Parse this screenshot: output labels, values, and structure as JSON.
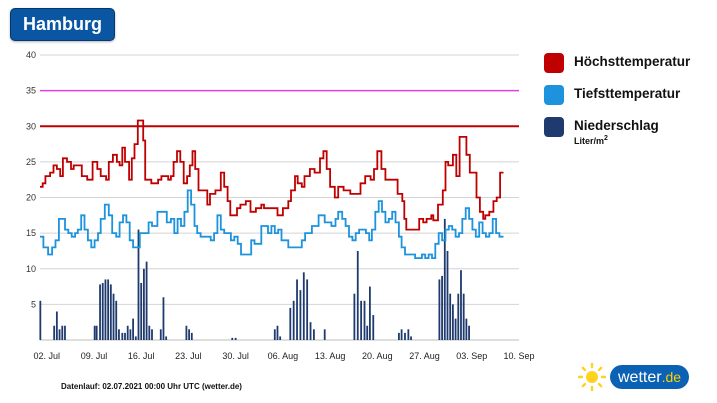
{
  "header": {
    "city": "Hamburg"
  },
  "legend": {
    "max_label": "Höchsttemperatur",
    "min_label": "Tiefsttemperatur",
    "precip_label": "Niederschlag",
    "precip_unit": "Liter/m",
    "precip_unit_exp": "2"
  },
  "footer": {
    "text": "Datenlauf: 02.07.2021 00:00 Uhr UTC (wetter.de)"
  },
  "brand": {
    "name": "wetter",
    "tld": ".de"
  },
  "colors": {
    "max": "#c00000",
    "min": "#1c93dc",
    "precip": "#1e3a6e",
    "ref_line": "#e040e0",
    "brand": "#0b61b4"
  },
  "chart_data": {
    "type": "line",
    "title": "Hamburg",
    "xlabel": "",
    "ylabel": "",
    "ylim": [
      0,
      40
    ],
    "yticks": [
      5,
      10,
      15,
      20,
      25,
      30,
      35,
      40
    ],
    "x_range_days": [
      -1,
      70
    ],
    "x_ticks": [
      {
        "day": 0,
        "label": "02. Jul"
      },
      {
        "day": 7,
        "label": "09. Jul"
      },
      {
        "day": 14,
        "label": "16. Jul"
      },
      {
        "day": 21,
        "label": "23. Jul"
      },
      {
        "day": 28,
        "label": "30. Jul"
      },
      {
        "day": 35,
        "label": "06. Aug"
      },
      {
        "day": 42,
        "label": "13. Aug"
      },
      {
        "day": 49,
        "label": "20. Aug"
      },
      {
        "day": 56,
        "label": "27. Aug"
      },
      {
        "day": 63,
        "label": "03. Sep"
      },
      {
        "day": 70,
        "label": "10. Sep"
      }
    ],
    "reference_lines": [
      {
        "value": 30,
        "color": "#c00000"
      },
      {
        "value": 35,
        "color": "#e040e0"
      }
    ],
    "series": [
      {
        "name": "Höchsttemperatur",
        "kind": "step",
        "values": [
          [
            -1,
            21.5
          ],
          [
            -0.6,
            22
          ],
          [
            -0.2,
            23
          ],
          [
            0.5,
            23.5
          ],
          [
            1,
            24.5
          ],
          [
            1.5,
            24
          ],
          [
            2,
            23
          ],
          [
            2.4,
            25.5
          ],
          [
            3,
            25
          ],
          [
            3.6,
            24
          ],
          [
            4,
            24.5
          ],
          [
            4.8,
            24.5
          ],
          [
            5.2,
            23
          ],
          [
            6,
            22.5
          ],
          [
            6.8,
            25
          ],
          [
            7.5,
            24
          ],
          [
            8,
            23
          ],
          [
            8.8,
            22.5
          ],
          [
            9.2,
            25
          ],
          [
            9.8,
            26
          ],
          [
            10.4,
            25
          ],
          [
            10.8,
            24.5
          ],
          [
            11.2,
            27
          ],
          [
            11.6,
            25
          ],
          [
            12.2,
            22.5
          ],
          [
            12.6,
            25.5
          ],
          [
            13,
            27.5
          ],
          [
            13.5,
            30.8
          ],
          [
            14.3,
            28
          ],
          [
            14.6,
            22.5
          ],
          [
            15.5,
            22
          ],
          [
            16.5,
            22.5
          ],
          [
            17,
            23
          ],
          [
            18,
            22.5
          ],
          [
            18.4,
            23
          ],
          [
            18.8,
            25
          ],
          [
            19.3,
            26.5
          ],
          [
            19.8,
            25
          ],
          [
            20.3,
            22
          ],
          [
            20.8,
            23
          ],
          [
            21.2,
            24.5
          ],
          [
            21.6,
            26.5
          ],
          [
            22,
            24
          ],
          [
            22.5,
            21
          ],
          [
            23.8,
            19
          ],
          [
            24.2,
            20.5
          ],
          [
            25,
            21
          ],
          [
            25.8,
            23.5
          ],
          [
            26.3,
            21.5
          ],
          [
            26.8,
            19.5
          ],
          [
            27.2,
            17.5
          ],
          [
            28.2,
            18.5
          ],
          [
            28.7,
            19
          ],
          [
            29.5,
            19.5
          ],
          [
            30.2,
            18
          ],
          [
            31,
            18.5
          ],
          [
            31.8,
            19
          ],
          [
            32.2,
            18.5
          ],
          [
            34.2,
            17.5
          ],
          [
            35,
            18.5
          ],
          [
            35.8,
            19.5
          ],
          [
            36.2,
            21
          ],
          [
            36.8,
            23
          ],
          [
            37.2,
            22
          ],
          [
            37.8,
            21.5
          ],
          [
            38.2,
            23
          ],
          [
            39,
            24
          ],
          [
            39.7,
            23.5
          ],
          [
            40.5,
            25.5
          ],
          [
            41,
            26.5
          ],
          [
            41.5,
            24
          ],
          [
            42,
            21.5
          ],
          [
            42.7,
            20
          ],
          [
            43.2,
            21.5
          ],
          [
            44,
            21
          ],
          [
            45,
            20.5
          ],
          [
            46.5,
            22
          ],
          [
            47.2,
            23
          ],
          [
            48,
            22.5
          ],
          [
            48.5,
            24
          ],
          [
            49,
            26.5
          ],
          [
            49.6,
            24
          ],
          [
            50.2,
            22.5
          ],
          [
            51,
            22.5
          ],
          [
            52,
            20.5
          ],
          [
            52.7,
            19.5
          ],
          [
            53,
            17
          ],
          [
            53.3,
            15.5
          ],
          [
            55.2,
            17
          ],
          [
            55.8,
            16.5
          ],
          [
            56.3,
            17
          ],
          [
            57,
            17.5
          ],
          [
            57.3,
            16.8
          ],
          [
            58,
            19
          ],
          [
            58.7,
            21
          ],
          [
            59.1,
            25
          ],
          [
            59.5,
            24.5
          ],
          [
            60.2,
            26
          ],
          [
            60.7,
            23
          ],
          [
            61.2,
            28.5
          ],
          [
            62.2,
            26
          ],
          [
            62.7,
            23.5
          ],
          [
            63.7,
            20
          ],
          [
            64.2,
            18
          ],
          [
            64.7,
            17
          ],
          [
            65,
            17.5
          ],
          [
            65.6,
            18
          ],
          [
            66.2,
            19.5
          ],
          [
            66.7,
            20
          ],
          [
            67.2,
            23.5
          ],
          [
            67.7,
            23.5
          ]
        ]
      },
      {
        "name": "Tiefsttemperatur",
        "kind": "step",
        "values": [
          [
            -1,
            14.5
          ],
          [
            -0.5,
            13
          ],
          [
            0.2,
            12
          ],
          [
            0.8,
            13
          ],
          [
            1.3,
            14
          ],
          [
            1.8,
            17
          ],
          [
            2.3,
            17
          ],
          [
            2.7,
            15.5
          ],
          [
            3.2,
            15
          ],
          [
            3.7,
            14.5
          ],
          [
            4.2,
            15
          ],
          [
            4.6,
            15.5
          ],
          [
            5.1,
            17.5
          ],
          [
            5.6,
            15.5
          ],
          [
            6.1,
            14
          ],
          [
            6.6,
            13
          ],
          [
            7.1,
            14
          ],
          [
            7.6,
            15
          ],
          [
            8,
            17
          ],
          [
            8.6,
            19
          ],
          [
            9.2,
            17.5
          ],
          [
            9.7,
            15
          ],
          [
            10.3,
            14.5
          ],
          [
            10.8,
            16.5
          ],
          [
            11.3,
            17.5
          ],
          [
            11.8,
            16.5
          ],
          [
            12.3,
            14
          ],
          [
            12.8,
            13
          ],
          [
            13.8,
            15
          ],
          [
            14.5,
            15
          ],
          [
            15.1,
            16.5
          ],
          [
            15.6,
            16
          ],
          [
            16.4,
            18
          ],
          [
            17.3,
            18
          ],
          [
            17.8,
            16.5
          ],
          [
            18.4,
            17
          ],
          [
            18.9,
            15
          ],
          [
            19.4,
            17
          ],
          [
            19.9,
            16
          ],
          [
            20.4,
            18
          ],
          [
            20.9,
            21
          ],
          [
            21.4,
            19
          ],
          [
            21.9,
            16
          ],
          [
            22.3,
            15
          ],
          [
            22.8,
            14.5
          ],
          [
            23.8,
            14.5
          ],
          [
            24.3,
            14
          ],
          [
            24.8,
            15
          ],
          [
            25.3,
            17.5
          ],
          [
            25.8,
            15.5
          ],
          [
            26.3,
            15
          ],
          [
            27.3,
            14
          ],
          [
            27.8,
            14.5
          ],
          [
            28.3,
            13.5
          ],
          [
            28.8,
            12
          ],
          [
            30.3,
            14
          ],
          [
            30.8,
            13.5
          ],
          [
            31.8,
            16
          ],
          [
            32.8,
            15
          ],
          [
            33.3,
            16
          ],
          [
            33.8,
            15
          ],
          [
            34.3,
            15.5
          ],
          [
            34.8,
            14
          ],
          [
            35.8,
            13
          ],
          [
            37.3,
            13
          ],
          [
            37.8,
            14
          ],
          [
            38.3,
            15
          ],
          [
            39.3,
            16
          ],
          [
            40.3,
            17.5
          ],
          [
            41.2,
            16.5
          ],
          [
            42.2,
            16
          ],
          [
            42.8,
            17
          ],
          [
            43.2,
            18
          ],
          [
            43.8,
            17
          ],
          [
            44.3,
            16
          ],
          [
            44.8,
            14.5
          ],
          [
            45.3,
            14
          ],
          [
            45.8,
            15
          ],
          [
            46.3,
            15.5
          ],
          [
            47.3,
            15
          ],
          [
            47.8,
            14
          ],
          [
            48.2,
            15.5
          ],
          [
            48.7,
            18
          ],
          [
            49.2,
            19.5
          ],
          [
            49.7,
            18
          ],
          [
            50.2,
            16.5
          ],
          [
            50.7,
            17
          ],
          [
            51.2,
            18
          ],
          [
            51.7,
            16.5
          ],
          [
            52.2,
            14.5
          ],
          [
            52.6,
            13
          ],
          [
            53.1,
            12
          ],
          [
            54.1,
            12
          ],
          [
            54.6,
            11.5
          ],
          [
            55.6,
            12
          ],
          [
            56.1,
            11.5
          ],
          [
            56.6,
            12
          ],
          [
            57.1,
            11.5
          ],
          [
            57.6,
            13.5
          ],
          [
            58.1,
            15
          ],
          [
            58.6,
            14
          ],
          [
            59.1,
            15.5
          ],
          [
            59.6,
            16
          ],
          [
            60.1,
            15.5
          ],
          [
            60.6,
            14.5
          ],
          [
            61.1,
            15
          ],
          [
            61.6,
            17
          ],
          [
            62.1,
            18.5
          ],
          [
            62.6,
            17
          ],
          [
            63.1,
            15.5
          ],
          [
            63.6,
            14.5
          ],
          [
            64.1,
            16.5
          ],
          [
            64.6,
            15
          ],
          [
            65.1,
            14.5
          ],
          [
            65.6,
            15
          ],
          [
            66.1,
            17
          ],
          [
            66.6,
            15
          ],
          [
            67.1,
            14.5
          ],
          [
            67.7,
            14.5
          ]
        ]
      },
      {
        "name": "Niederschlag",
        "kind": "bar",
        "values": [
          [
            -0.95,
            5.5
          ],
          [
            1.1,
            2
          ],
          [
            1.5,
            4
          ],
          [
            1.9,
            1.5
          ],
          [
            2.3,
            2
          ],
          [
            2.7,
            2
          ],
          [
            7.1,
            2
          ],
          [
            7.4,
            2
          ],
          [
            7.9,
            7.8
          ],
          [
            8.3,
            8
          ],
          [
            8.7,
            8.5
          ],
          [
            9.1,
            8.5
          ],
          [
            9.5,
            7.8
          ],
          [
            9.9,
            6.5
          ],
          [
            10.3,
            5.5
          ],
          [
            10.7,
            1.5
          ],
          [
            11.2,
            1
          ],
          [
            11.6,
            1
          ],
          [
            12.0,
            2
          ],
          [
            12.4,
            1.5
          ],
          [
            12.8,
            3
          ],
          [
            13.2,
            0.5
          ],
          [
            13.6,
            15.5
          ],
          [
            14.0,
            8
          ],
          [
            14.4,
            10
          ],
          [
            14.8,
            11
          ],
          [
            15.2,
            2
          ],
          [
            15.6,
            1.5
          ],
          [
            16.9,
            1.5
          ],
          [
            17.3,
            6
          ],
          [
            17.7,
            0.5
          ],
          [
            20.7,
            2
          ],
          [
            21.1,
            1.5
          ],
          [
            21.5,
            1
          ],
          [
            27.5,
            0.3
          ],
          [
            28,
            0.3
          ],
          [
            33.8,
            1.5
          ],
          [
            34.2,
            2
          ],
          [
            34.6,
            0.5
          ],
          [
            36.1,
            4.5
          ],
          [
            36.6,
            5.5
          ],
          [
            37.1,
            8.5
          ],
          [
            37.6,
            7
          ],
          [
            38.1,
            9.5
          ],
          [
            38.6,
            8.5
          ],
          [
            39.1,
            2.5
          ],
          [
            39.6,
            1.5
          ],
          [
            41.2,
            1.5
          ],
          [
            45.6,
            6.5
          ],
          [
            46.1,
            12.5
          ],
          [
            46.6,
            5.5
          ],
          [
            47.1,
            5.5
          ],
          [
            47.5,
            2
          ],
          [
            47.9,
            7.5
          ],
          [
            48.4,
            3.5
          ],
          [
            52.2,
            1
          ],
          [
            52.6,
            1.5
          ],
          [
            53.1,
            1
          ],
          [
            53.6,
            1.5
          ],
          [
            54,
            0.5
          ],
          [
            58.2,
            8.5
          ],
          [
            58.6,
            9
          ],
          [
            59.0,
            17
          ],
          [
            59.4,
            12.5
          ],
          [
            59.8,
            6.5
          ],
          [
            60.2,
            5
          ],
          [
            60.6,
            3
          ],
          [
            61.0,
            6.5
          ],
          [
            61.4,
            9.8
          ],
          [
            61.8,
            6.5
          ],
          [
            62.2,
            3
          ],
          [
            62.6,
            2
          ]
        ]
      }
    ]
  }
}
